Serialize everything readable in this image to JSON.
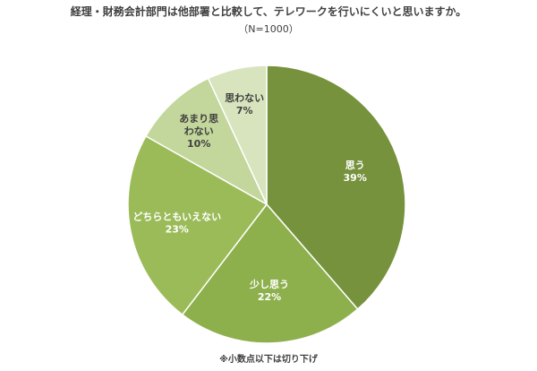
{
  "chart_data": {
    "type": "pie",
    "title": "経理・財務会計部門は他部署と比較して、テレワークを行いにくいと思いますか。",
    "subtitle": "（N=1000）",
    "note": "※小数点以下は切り下げ",
    "slices": [
      {
        "label": "思う",
        "value": 39,
        "value_label": "39%",
        "color": "#76923c",
        "text_color": "#ffffff"
      },
      {
        "label": "少し思う",
        "value": 22,
        "value_label": "22%",
        "color": "#8db04d",
        "text_color": "#ffffff"
      },
      {
        "label": "どちらともいえない",
        "value": 23,
        "value_label": "23%",
        "color": "#9bbb59",
        "text_color": "#ffffff"
      },
      {
        "label": "あまり思わない",
        "label_lines": [
          "あまり思",
          "わない"
        ],
        "value": 10,
        "value_label": "10%",
        "color": "#c3d69b",
        "text_color": "#404040"
      },
      {
        "label": "思わない",
        "value": 7,
        "value_label": "7%",
        "color": "#d7e4bd",
        "text_color": "#404040"
      }
    ]
  }
}
